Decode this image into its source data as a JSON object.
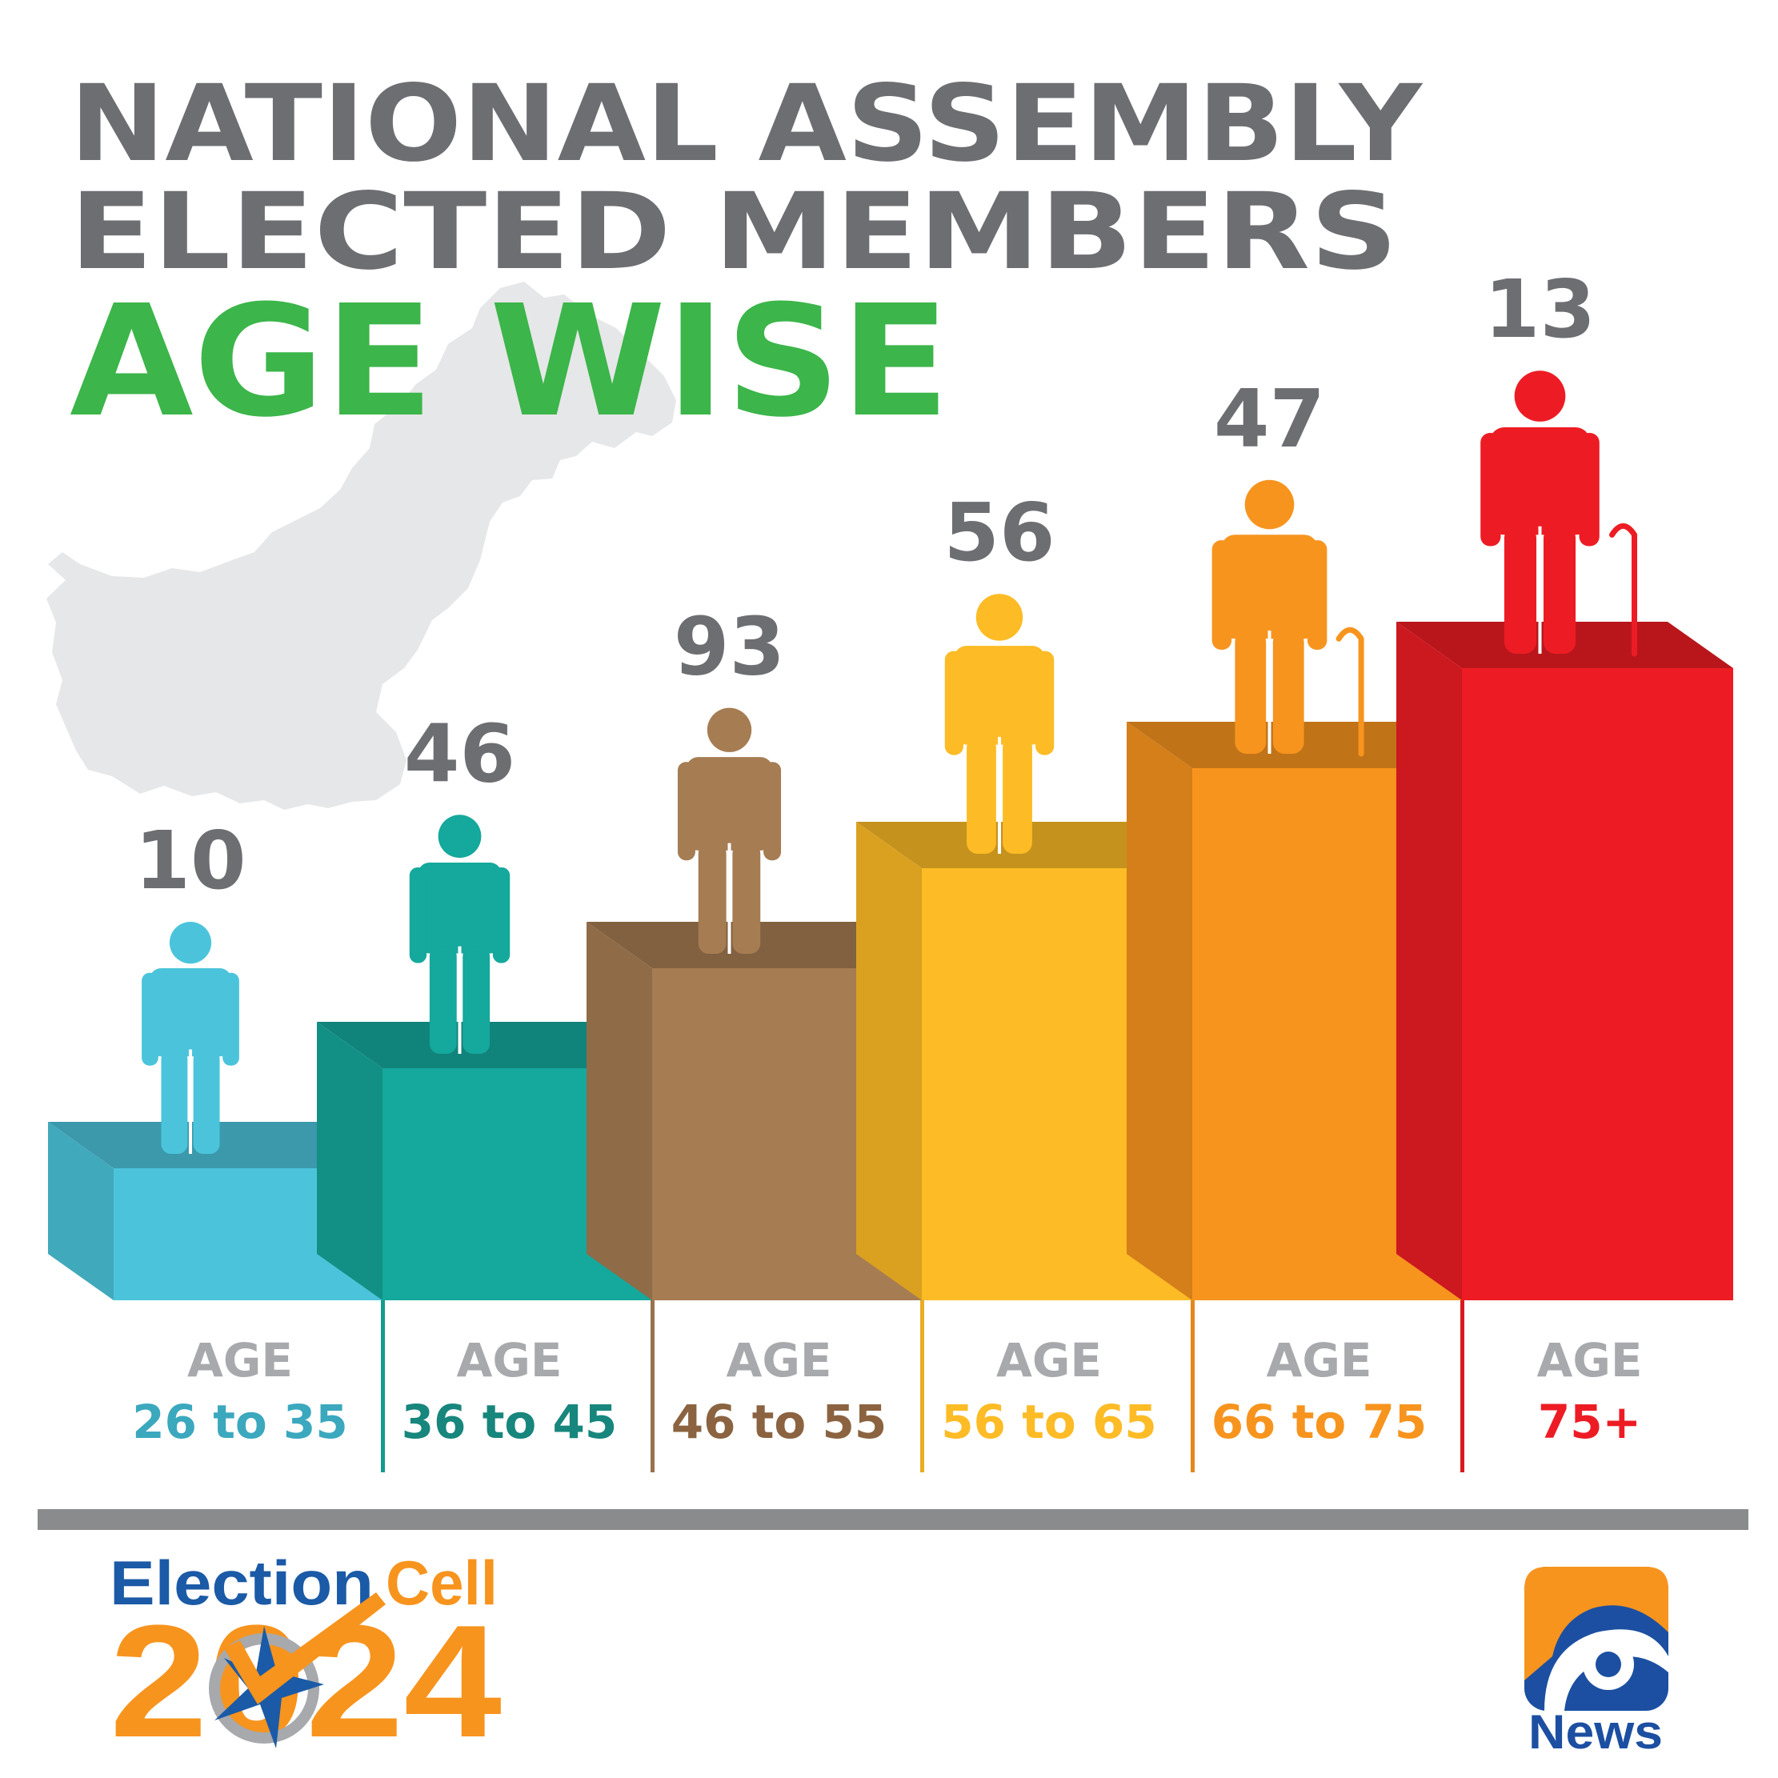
{
  "title": {
    "line1": "NATIONAL ASSEMBLY",
    "line2": "ELECTED MEMBERS",
    "line3": "AGE WISE"
  },
  "chart_data": {
    "type": "bar",
    "title": "NATIONAL ASSEMBLY ELECTED MEMBERS AGE WISE",
    "categories": [
      "26 to 35",
      "36 to 45",
      "46 to 55",
      "56 to 65",
      "66 to 75",
      "75+"
    ],
    "values": [
      10,
      46,
      93,
      56,
      47,
      13
    ],
    "category_prefix": "AGE",
    "colors": [
      "#4bc4db",
      "#15a89c",
      "#a67c52",
      "#fdbb25",
      "#f7941e",
      "#ed1c24"
    ],
    "label_colors": [
      "#3ba8be",
      "#17867d",
      "#8b6340",
      "#fdbb25",
      "#f7941e",
      "#ed1c24"
    ],
    "value_label_color": "#6d6e71",
    "legend": "none",
    "grid": false
  },
  "colors": {
    "title_gray": "#6d6e71",
    "title_green": "#3cb54a",
    "map_gray": "#e6e7e8",
    "rule_gray": "#8a8b8d",
    "age_label_gray": "#a7a9ac",
    "election_blue": "#1b5aa6",
    "election_orange": "#f7941e",
    "geo_blue": "#1c4fa1",
    "geo_orange": "#f7941e"
  },
  "footer": {
    "election_logo": {
      "word1": "Election",
      "word2": "Cell",
      "year": "2024"
    },
    "geo_logo": {
      "brand": "News"
    }
  },
  "icons": [
    "pakistan-map-icon",
    "person-icon",
    "cane-icon",
    "star-icon",
    "checkmark-icon",
    "geo-logo-icon"
  ]
}
